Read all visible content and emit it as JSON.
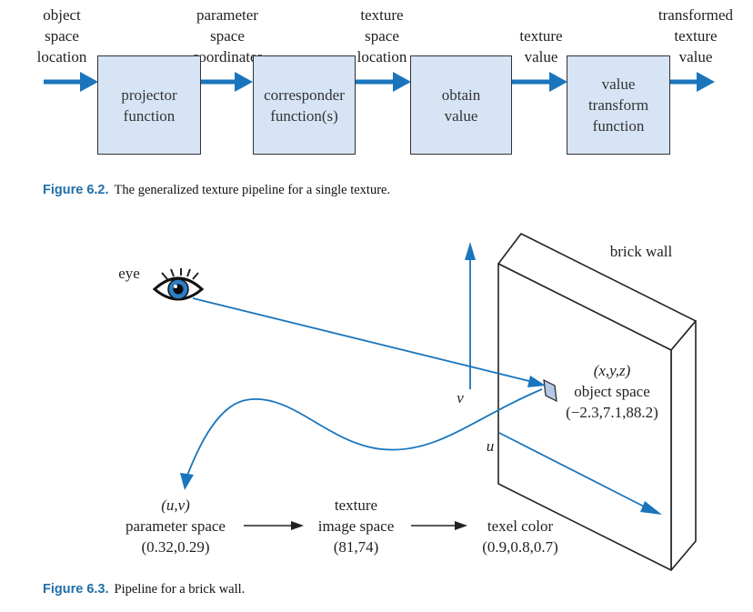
{
  "figure_6_2": {
    "inputs": {
      "object_space_location": [
        "object",
        "space",
        "location"
      ],
      "parameter_space_coordinates": [
        "parameter",
        "space",
        "coordinates"
      ],
      "texture_space_location": [
        "texture",
        "space",
        "location"
      ],
      "texture_value": [
        "texture",
        "value"
      ],
      "transformed_texture_value": [
        "transformed",
        "texture",
        "value"
      ]
    },
    "boxes": {
      "projector": [
        "projector",
        "function"
      ],
      "corresponder": [
        "corresponder",
        "function(s)"
      ],
      "obtain": [
        "obtain",
        "value"
      ],
      "value_transform": [
        "value",
        "transform",
        "function"
      ]
    },
    "caption": {
      "label": "Figure 6.2.",
      "text": "The generalized texture pipeline for a single texture."
    }
  },
  "figure_6_3": {
    "eye_label": "eye",
    "wall_label": "brick wall",
    "axis_v": "v",
    "axis_u": "u",
    "object_space": [
      "(x,y,z)",
      "object space",
      "(−2.3,7.1,88.2)"
    ],
    "parameter_space": [
      "(u,v)",
      "parameter space",
      "(0.32,0.29)"
    ],
    "texture_image_space": [
      "texture",
      "image space",
      "(81,74)"
    ],
    "texel_color": [
      "texel color",
      "(0.9,0.8,0.7)"
    ],
    "caption": {
      "label": "Figure 6.3.",
      "text": "Pipeline for a brick wall."
    }
  },
  "colors": {
    "arrow_blue": "#1a75bc",
    "box_fill": "#d6e4f5",
    "caption_blue": "#1f6ea8"
  }
}
